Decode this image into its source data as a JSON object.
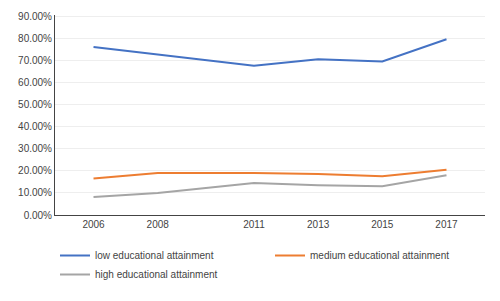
{
  "chart_data": {
    "type": "line",
    "x": [
      2006,
      2008,
      2011,
      2013,
      2015,
      2017
    ],
    "series": [
      {
        "name": "low educational attainment",
        "color": "#4472C4",
        "values": [
          0.76,
          0.725,
          0.675,
          0.705,
          0.695,
          0.795
        ]
      },
      {
        "name": "medium educational attainment",
        "color": "#ED7D31",
        "values": [
          0.165,
          0.19,
          0.19,
          0.185,
          0.175,
          0.205
        ]
      },
      {
        "name": "high educational attainment",
        "color": "#A5A5A5",
        "values": [
          0.082,
          0.1,
          0.145,
          0.135,
          0.13,
          0.18
        ]
      }
    ],
    "xlim": [
      2004.8,
      2018.2
    ],
    "xticks": [
      2006,
      2008,
      2011,
      2013,
      2015,
      2017
    ],
    "ylim": [
      0.0,
      0.905
    ],
    "yticks": [
      {
        "value": 0.0,
        "label": "0.00%"
      },
      {
        "value": 0.1,
        "label": "10.00%"
      },
      {
        "value": 0.2,
        "label": "20.00%"
      },
      {
        "value": 0.3,
        "label": "30.00%"
      },
      {
        "value": 0.4,
        "label": "40.00%"
      },
      {
        "value": 0.5,
        "label": "50.00%"
      },
      {
        "value": 0.6,
        "label": "60.00%"
      },
      {
        "value": 0.7,
        "label": "70.00%"
      },
      {
        "value": 0.8,
        "label": "80.00%"
      },
      {
        "value": 0.9,
        "label": "90.00%"
      }
    ],
    "grid": "y",
    "legend": "bottom"
  }
}
